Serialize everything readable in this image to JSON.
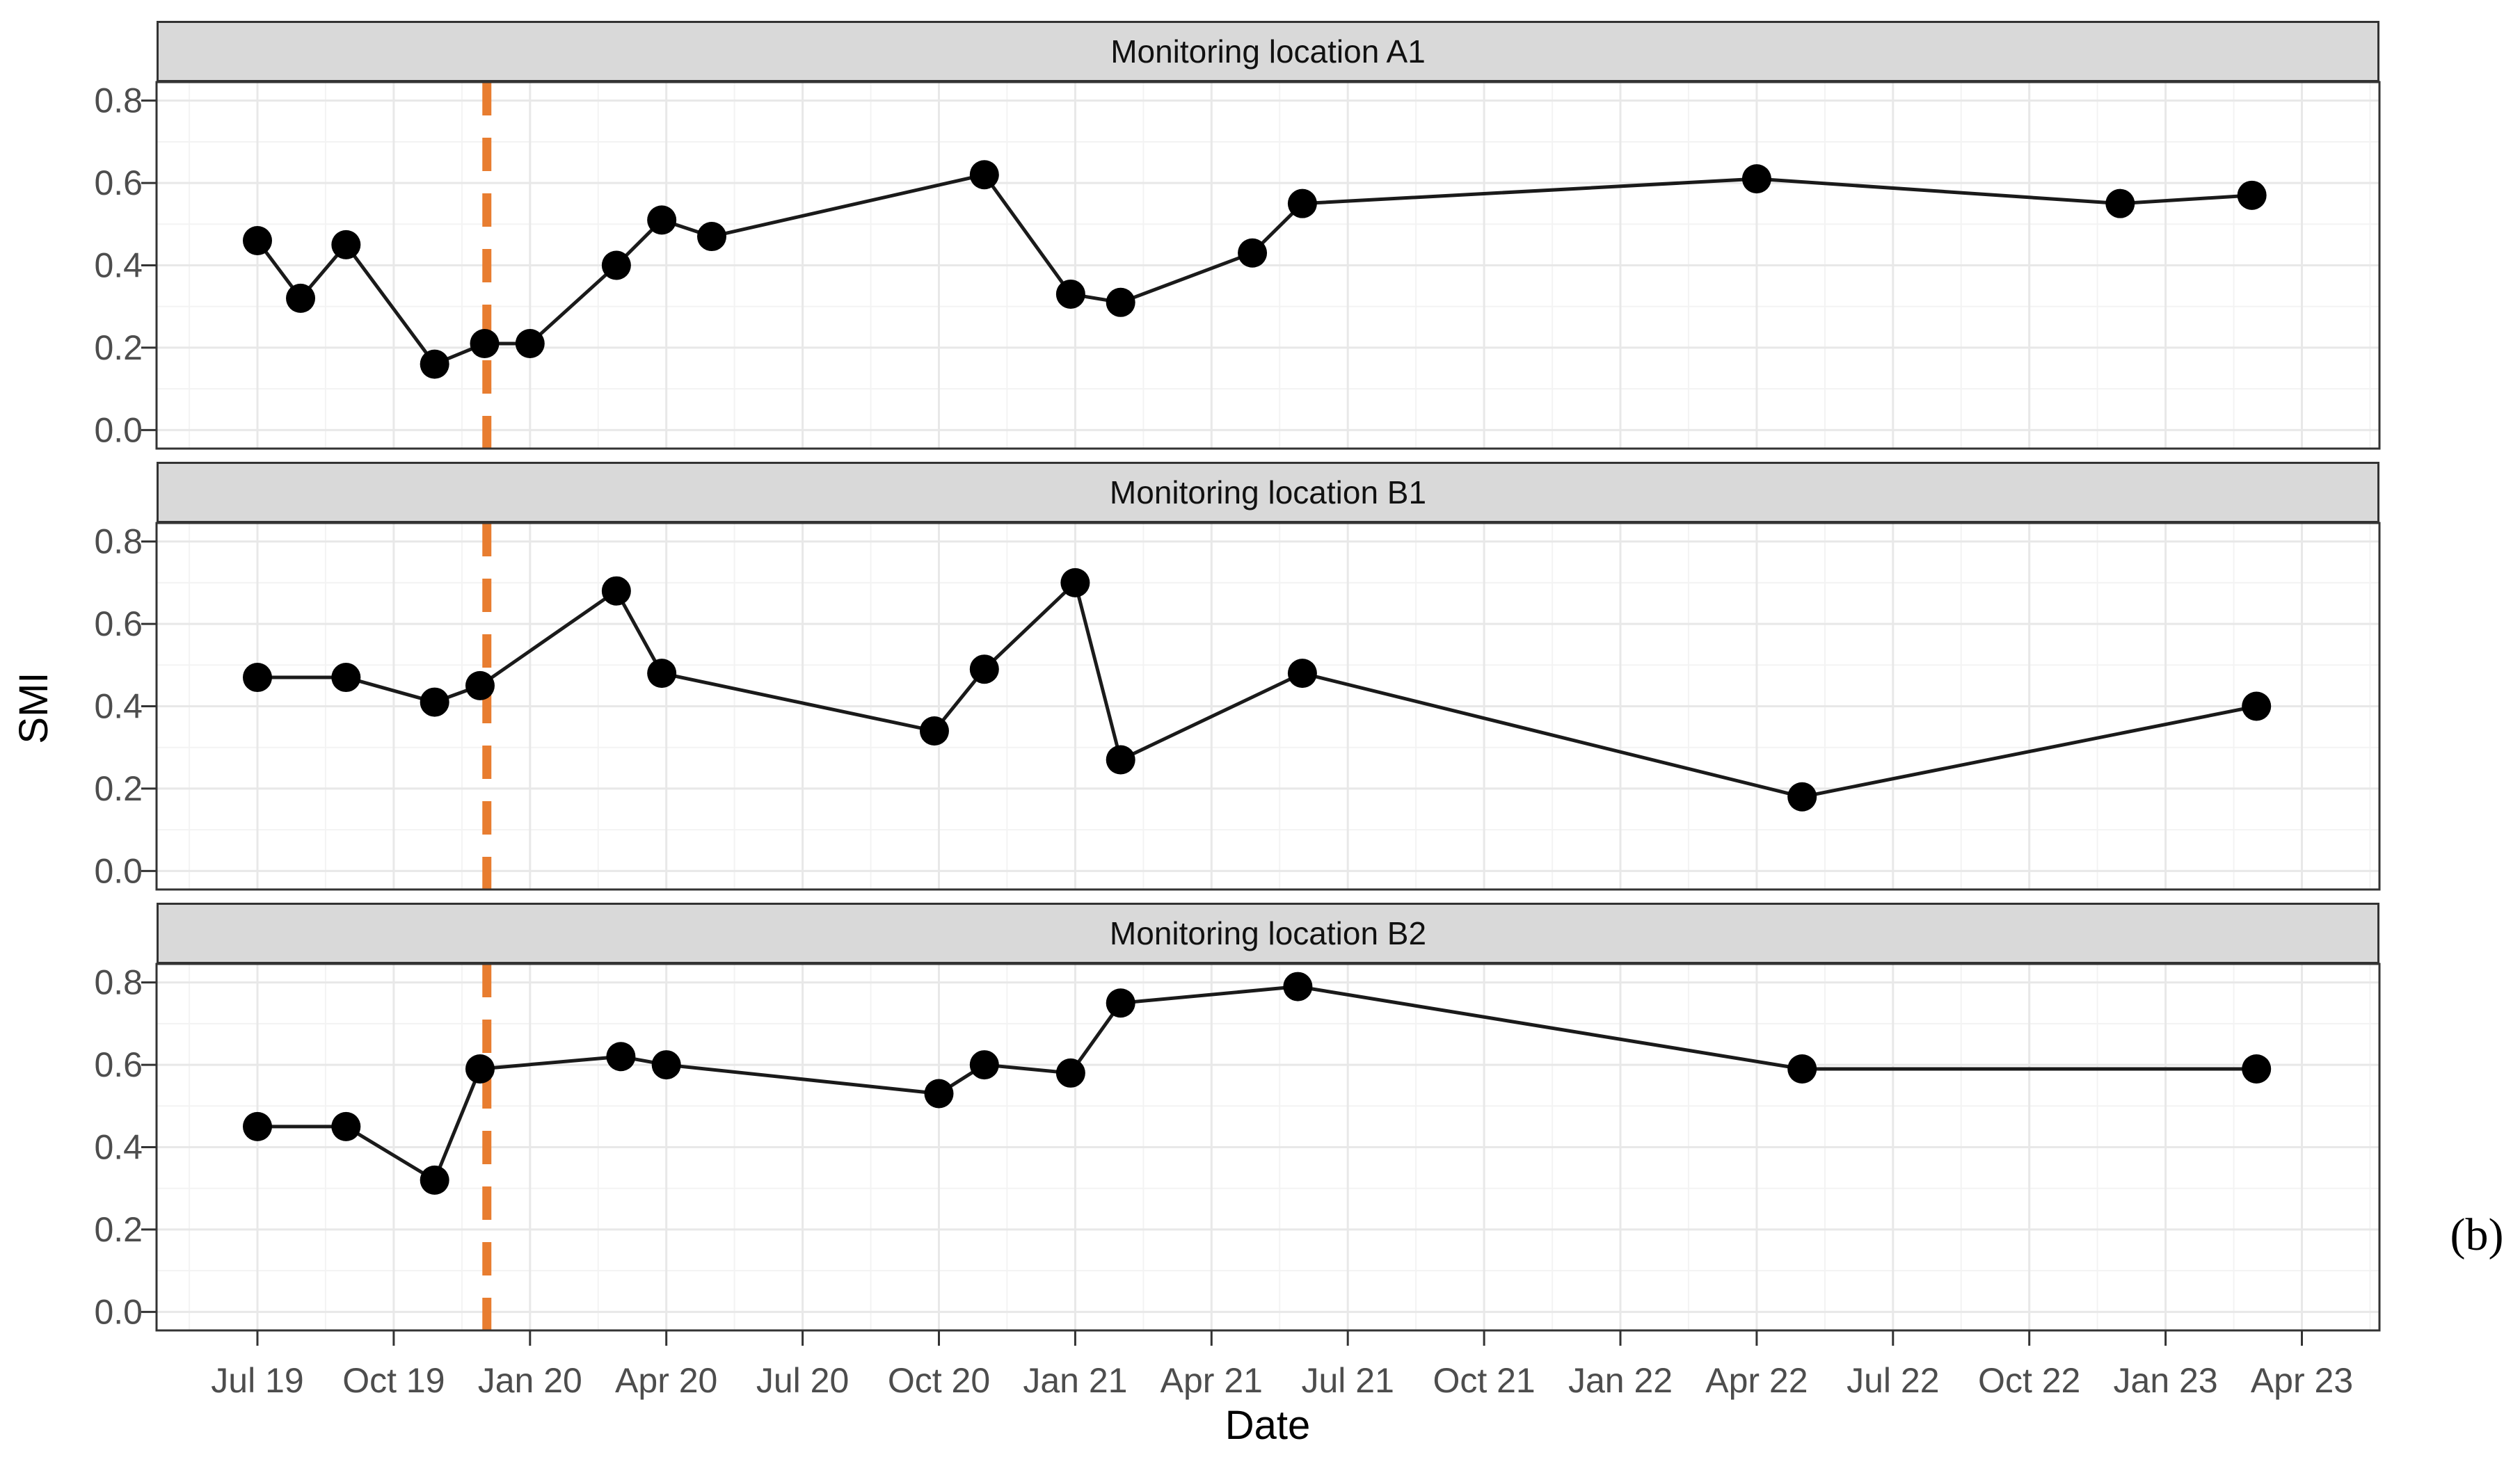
{
  "figure": {
    "xlabel": "Date",
    "ylabel": "SMI",
    "annotation": "(b)"
  },
  "colors": {
    "vline": "#E87D30",
    "line": "#1A1A1A",
    "point": "#000000",
    "strip_bg": "#D9D9D9",
    "strip_border": "#333333",
    "panel_border": "#333333",
    "panel_bg": "#FFFFFF",
    "grid_major": "#E8E8E8",
    "grid_minor": "#F3F3F3",
    "tick_mark": "#333333",
    "tick_label": "#4D4D4D"
  },
  "chart_data": {
    "type": "line",
    "xlabel": "Date",
    "ylabel": "SMI",
    "grid": "on",
    "legend": "none",
    "x_domain_months_since_jul2019": [
      -2.2,
      46.7
    ],
    "y_domain": [
      -0.045,
      0.845
    ],
    "y_ticks": [
      {
        "label": "0.0",
        "v": 0.0
      },
      {
        "label": "0.2",
        "v": 0.2
      },
      {
        "label": "0.4",
        "v": 0.4
      },
      {
        "label": "0.6",
        "v": 0.6
      },
      {
        "label": "0.8",
        "v": 0.8
      }
    ],
    "x_ticks": [
      {
        "label": "Jul 19",
        "m": 0
      },
      {
        "label": "Oct 19",
        "m": 3
      },
      {
        "label": "Jan 20",
        "m": 6
      },
      {
        "label": "Apr 20",
        "m": 9
      },
      {
        "label": "Jul 20",
        "m": 12
      },
      {
        "label": "Oct 20",
        "m": 15
      },
      {
        "label": "Jan 21",
        "m": 18
      },
      {
        "label": "Apr 21",
        "m": 21
      },
      {
        "label": "Jul 21",
        "m": 24
      },
      {
        "label": "Oct 21",
        "m": 27
      },
      {
        "label": "Jan 22",
        "m": 30
      },
      {
        "label": "Apr 22",
        "m": 33
      },
      {
        "label": "Jul 22",
        "m": 36
      },
      {
        "label": "Oct 22",
        "m": 39
      },
      {
        "label": "Jan 23",
        "m": 42
      },
      {
        "label": "Apr 23",
        "m": 45
      }
    ],
    "vline": {
      "m": 5.05,
      "date": "Dec 2019",
      "style": "dashed"
    },
    "facets": [
      {
        "title": "Monitoring location A1",
        "points": [
          {
            "m": 0.0,
            "date": "Jul 2019",
            "smi": 0.46
          },
          {
            "m": 0.95,
            "date": "Aug 2019",
            "smi": 0.32
          },
          {
            "m": 1.95,
            "date": "Sep 2019",
            "smi": 0.45
          },
          {
            "m": 3.9,
            "date": "Nov 2019",
            "smi": 0.16
          },
          {
            "m": 5.0,
            "date": "Dec 2019",
            "smi": 0.21
          },
          {
            "m": 6.0,
            "date": "Jan 2020",
            "smi": 0.21
          },
          {
            "m": 7.9,
            "date": "Mar 2020",
            "smi": 0.4
          },
          {
            "m": 8.9,
            "date": "Apr 2020",
            "smi": 0.51
          },
          {
            "m": 10.0,
            "date": "May 2020",
            "smi": 0.47
          },
          {
            "m": 16.0,
            "date": "Nov 2020",
            "smi": 0.62
          },
          {
            "m": 17.9,
            "date": "Jan 2021",
            "smi": 0.33
          },
          {
            "m": 19.0,
            "date": "Feb 2021",
            "smi": 0.31
          },
          {
            "m": 21.9,
            "date": "May 2021",
            "smi": 0.43
          },
          {
            "m": 23.0,
            "date": "Jun 2021",
            "smi": 0.55
          },
          {
            "m": 33.0,
            "date": "Apr 2022",
            "smi": 0.61
          },
          {
            "m": 41.0,
            "date": "Dec 2022",
            "smi": 0.55
          },
          {
            "m": 43.9,
            "date": "Mar 2023",
            "smi": 0.57
          }
        ]
      },
      {
        "title": "Monitoring location B1",
        "points": [
          {
            "m": 0.0,
            "date": "Jul 2019",
            "smi": 0.47
          },
          {
            "m": 1.95,
            "date": "Sep 2019",
            "smi": 0.47
          },
          {
            "m": 3.9,
            "date": "Nov 2019",
            "smi": 0.41
          },
          {
            "m": 4.9,
            "date": "Dec 2019",
            "smi": 0.45
          },
          {
            "m": 7.9,
            "date": "Mar 2020",
            "smi": 0.68
          },
          {
            "m": 8.9,
            "date": "Apr 2020",
            "smi": 0.48
          },
          {
            "m": 14.9,
            "date": "Oct 2020",
            "smi": 0.34
          },
          {
            "m": 16.0,
            "date": "Nov 2020",
            "smi": 0.49
          },
          {
            "m": 18.0,
            "date": "Jan 2021",
            "smi": 0.7
          },
          {
            "m": 19.0,
            "date": "Feb 2021",
            "smi": 0.27
          },
          {
            "m": 23.0,
            "date": "Jun 2021",
            "smi": 0.48
          },
          {
            "m": 34.0,
            "date": "May 2022",
            "smi": 0.18
          },
          {
            "m": 44.0,
            "date": "Mar 2023",
            "smi": 0.4
          }
        ]
      },
      {
        "title": "Monitoring location B2",
        "points": [
          {
            "m": 0.0,
            "date": "Jul 2019",
            "smi": 0.45
          },
          {
            "m": 1.95,
            "date": "Sep 2019",
            "smi": 0.45
          },
          {
            "m": 3.9,
            "date": "Nov 2019",
            "smi": 0.32
          },
          {
            "m": 4.9,
            "date": "Dec 2019",
            "smi": 0.59
          },
          {
            "m": 8.0,
            "date": "Mar 2020",
            "smi": 0.62
          },
          {
            "m": 9.0,
            "date": "Apr 2020",
            "smi": 0.6
          },
          {
            "m": 15.0,
            "date": "Oct 2020",
            "smi": 0.53
          },
          {
            "m": 16.0,
            "date": "Nov 2020",
            "smi": 0.6
          },
          {
            "m": 17.9,
            "date": "Jan 2021",
            "smi": 0.58
          },
          {
            "m": 19.0,
            "date": "Feb 2021",
            "smi": 0.75
          },
          {
            "m": 22.9,
            "date": "Jun 2021",
            "smi": 0.79
          },
          {
            "m": 34.0,
            "date": "May 2022",
            "smi": 0.59
          },
          {
            "m": 44.0,
            "date": "Mar 2023",
            "smi": 0.59
          }
        ]
      }
    ]
  }
}
